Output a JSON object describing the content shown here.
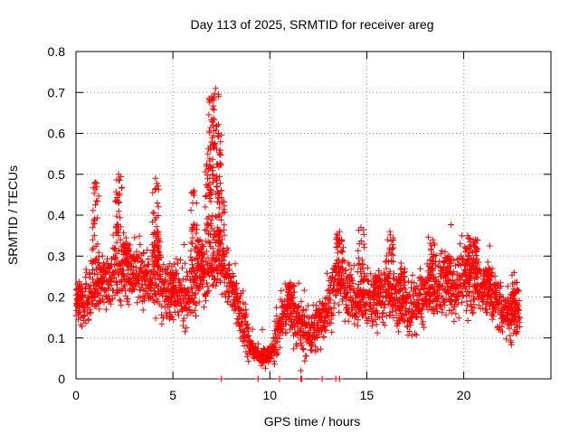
{
  "chart_data": {
    "type": "scatter",
    "title": "Day 113 of 2025, SRMTID for receiver areg",
    "xlabel": "GPS time / hours",
    "ylabel": "SRMTID / TECUs",
    "xlim": [
      0,
      24.5
    ],
    "ylim": [
      0,
      0.8
    ],
    "xticks": [
      0,
      5,
      10,
      15,
      20
    ],
    "yticks": [
      0,
      0.1,
      0.2,
      0.3,
      0.4,
      0.5,
      0.6,
      0.7,
      0.8
    ],
    "xtick_labels": [
      "0",
      "5",
      "10",
      "15",
      "20"
    ],
    "ytick_labels": [
      "0",
      "0.1",
      "0.2",
      "0.3",
      "0.4",
      "0.5",
      "0.6",
      "0.7",
      "0.8"
    ],
    "grid": true,
    "marker": "plus",
    "color": "#ff0000",
    "x_end": 22.9,
    "baseline_trend": [
      [
        0.0,
        0.18
      ],
      [
        0.5,
        0.2
      ],
      [
        1.0,
        0.22
      ],
      [
        1.5,
        0.24
      ],
      [
        2.0,
        0.27
      ],
      [
        2.5,
        0.27
      ],
      [
        3.0,
        0.26
      ],
      [
        3.5,
        0.24
      ],
      [
        4.0,
        0.25
      ],
      [
        4.5,
        0.22
      ],
      [
        5.0,
        0.2
      ],
      [
        5.5,
        0.2
      ],
      [
        6.0,
        0.22
      ],
      [
        6.5,
        0.26
      ],
      [
        7.0,
        0.3
      ],
      [
        7.5,
        0.29
      ],
      [
        8.0,
        0.22
      ],
      [
        8.5,
        0.15
      ],
      [
        9.0,
        0.08
      ],
      [
        9.5,
        0.05
      ],
      [
        10.0,
        0.06
      ],
      [
        10.5,
        0.13
      ],
      [
        11.0,
        0.18
      ],
      [
        11.5,
        0.13
      ],
      [
        12.0,
        0.11
      ],
      [
        12.5,
        0.13
      ],
      [
        13.0,
        0.18
      ],
      [
        13.5,
        0.25
      ],
      [
        14.0,
        0.22
      ],
      [
        14.5,
        0.18
      ],
      [
        15.0,
        0.2
      ],
      [
        15.5,
        0.18
      ],
      [
        16.0,
        0.22
      ],
      [
        16.5,
        0.19
      ],
      [
        17.0,
        0.17
      ],
      [
        17.5,
        0.18
      ],
      [
        18.0,
        0.2
      ],
      [
        18.5,
        0.22
      ],
      [
        19.0,
        0.23
      ],
      [
        19.5,
        0.22
      ],
      [
        20.0,
        0.24
      ],
      [
        20.5,
        0.24
      ],
      [
        21.0,
        0.23
      ],
      [
        21.5,
        0.2
      ],
      [
        22.0,
        0.17
      ],
      [
        22.5,
        0.15
      ],
      [
        22.9,
        0.15
      ]
    ],
    "spikes": [
      [
        0.1,
        0.22
      ],
      [
        1.0,
        0.48
      ],
      [
        1.3,
        0.24
      ],
      [
        2.2,
        0.5
      ],
      [
        2.6,
        0.33
      ],
      [
        4.1,
        0.49
      ],
      [
        4.2,
        0.36
      ],
      [
        5.0,
        0.26
      ],
      [
        6.1,
        0.46
      ],
      [
        6.4,
        0.34
      ],
      [
        6.8,
        0.55
      ],
      [
        7.0,
        0.69
      ],
      [
        7.2,
        0.71
      ],
      [
        7.35,
        0.6
      ],
      [
        7.5,
        0.46
      ],
      [
        11.1,
        0.23
      ],
      [
        13.6,
        0.36
      ],
      [
        14.7,
        0.37
      ],
      [
        15.5,
        0.25
      ],
      [
        16.2,
        0.36
      ],
      [
        16.8,
        0.27
      ],
      [
        18.4,
        0.34
      ],
      [
        19.2,
        0.3
      ],
      [
        20.2,
        0.35
      ],
      [
        20.6,
        0.34
      ],
      [
        21.3,
        0.27
      ],
      [
        22.6,
        0.26
      ]
    ],
    "zero_points": [
      7.5,
      9.4,
      10.5,
      11.6,
      11.65,
      12.7,
      13.4,
      13.6
    ],
    "isolated_points": [
      [
        11.6,
        0.02
      ]
    ]
  }
}
